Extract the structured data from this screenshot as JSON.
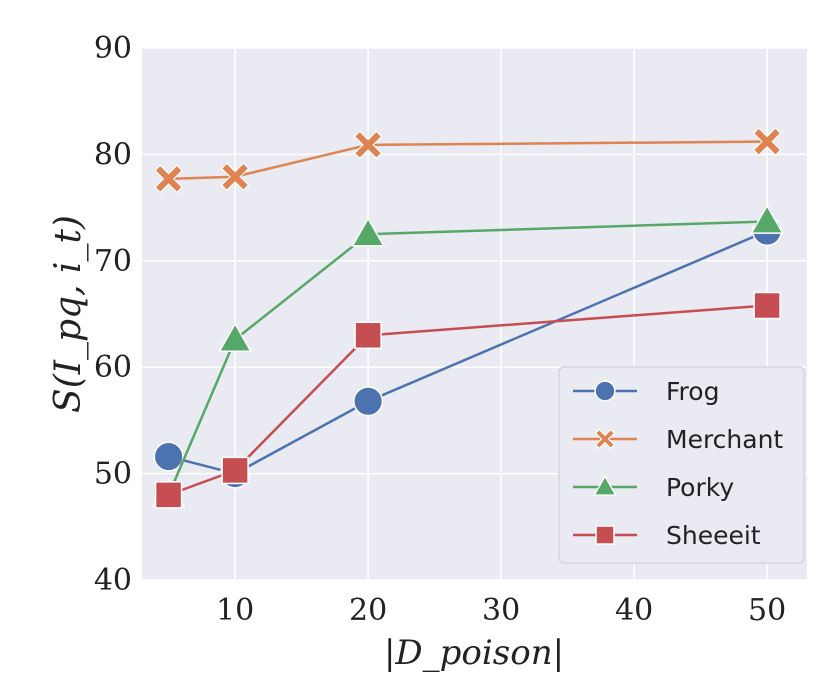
{
  "chart_data": {
    "type": "line",
    "title": "",
    "xlabel": "|D_poison|",
    "ylabel": "S(I_pq, i_t)",
    "xlim": [
      3,
      53
    ],
    "ylim": [
      40,
      90
    ],
    "xticks": [
      10,
      20,
      30,
      40,
      50
    ],
    "yticks": [
      40,
      50,
      60,
      70,
      80,
      90
    ],
    "grid": true,
    "legend_position": "lower-right",
    "series": [
      {
        "name": "Frog",
        "marker": "circle",
        "color": "#4C72B0",
        "x": [
          5,
          10,
          20,
          50
        ],
        "y": [
          51.6,
          50.0,
          56.8,
          72.8
        ]
      },
      {
        "name": "Merchant",
        "marker": "x",
        "color": "#DD8452",
        "x": [
          5,
          10,
          20,
          50
        ],
        "y": [
          77.7,
          77.9,
          80.9,
          81.2
        ]
      },
      {
        "name": "Porky",
        "marker": "triangle",
        "color": "#55A868",
        "x": [
          5,
          10,
          20,
          50
        ],
        "y": [
          48.0,
          62.6,
          72.5,
          73.7
        ]
      },
      {
        "name": "Sheeeit",
        "marker": "square",
        "color": "#C44E52",
        "x": [
          5,
          10,
          20,
          50
        ],
        "y": [
          48.0,
          50.3,
          63.0,
          65.8
        ]
      }
    ]
  }
}
